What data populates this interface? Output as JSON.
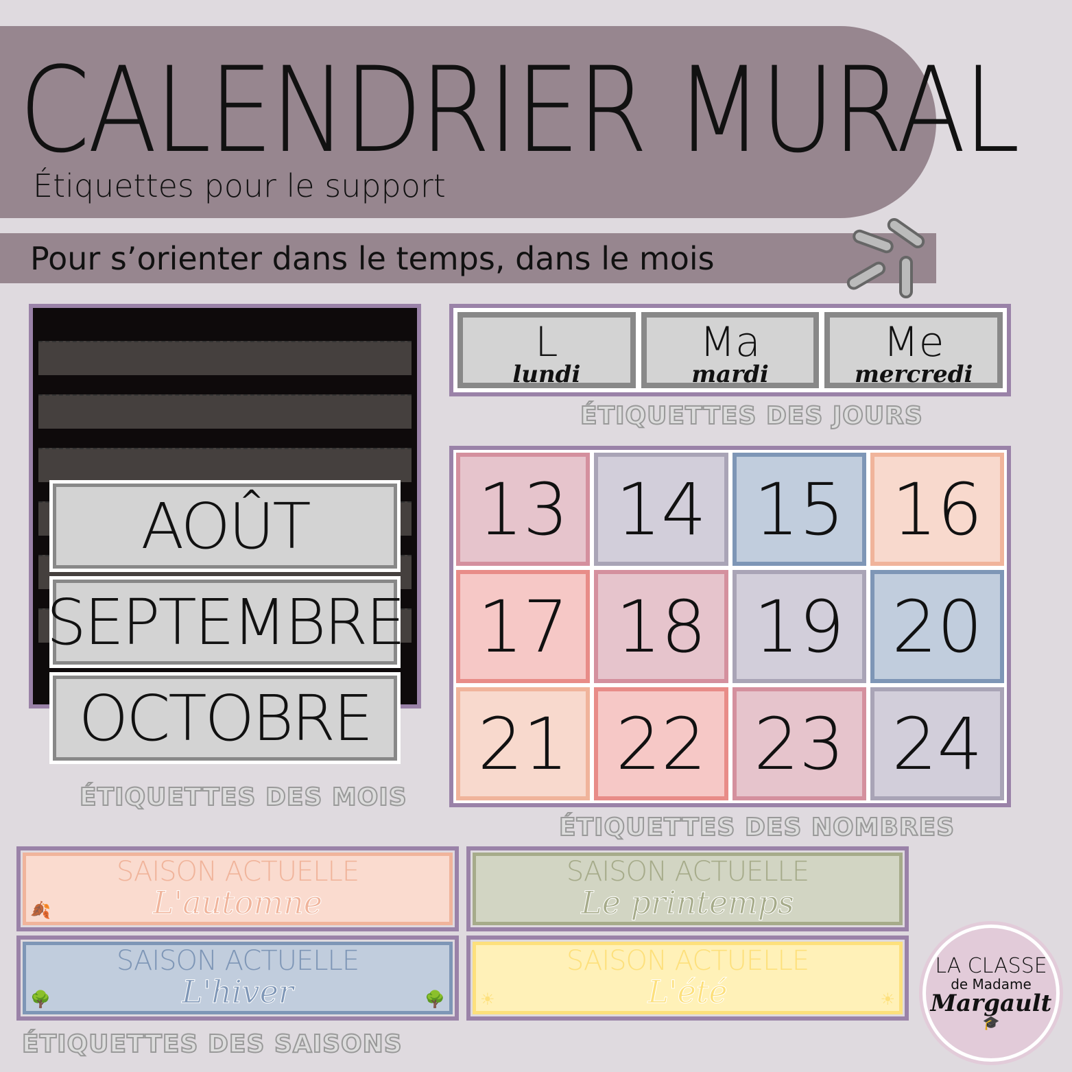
{
  "header": {
    "title": "CALENDRIER MURAL",
    "subtitle": "Étiquettes pour le support",
    "tagline": "Pour s’orienter dans le temps, dans le mois"
  },
  "months": {
    "items": [
      "AOÛT",
      "SEPTEMBRE",
      "OCTOBRE"
    ],
    "label": "ÉTIQUETTES DES MOIS"
  },
  "days": {
    "items": [
      {
        "abbr": "L",
        "name": "lundi"
      },
      {
        "abbr": "Ma",
        "name": "mardi"
      },
      {
        "abbr": "Me",
        "name": "mercredi"
      }
    ],
    "label": "ÉTIQUETTES DES JOURS"
  },
  "numbers": {
    "label": "ÉTIQUETTES DES NOMBRES",
    "items": [
      {
        "n": "13",
        "bg": "#e6c4cc",
        "bd": "#d4909e"
      },
      {
        "n": "14",
        "bg": "#d2ceda",
        "bd": "#a9a4b6"
      },
      {
        "n": "15",
        "bg": "#c1cddd",
        "bd": "#7e96b6"
      },
      {
        "n": "16",
        "bg": "#f8d9cd",
        "bd": "#f0b49b"
      },
      {
        "n": "17",
        "bg": "#f6c8c6",
        "bd": "#e88c88"
      },
      {
        "n": "18",
        "bg": "#e6c4cc",
        "bd": "#d4909e"
      },
      {
        "n": "19",
        "bg": "#d2ceda",
        "bd": "#a9a4b6"
      },
      {
        "n": "20",
        "bg": "#c1cddd",
        "bd": "#7e96b6"
      },
      {
        "n": "21",
        "bg": "#f8d9cd",
        "bd": "#f0b49b"
      },
      {
        "n": "22",
        "bg": "#f6c8c6",
        "bd": "#e88c88"
      },
      {
        "n": "23",
        "bg": "#e6c4cc",
        "bd": "#d4909e"
      },
      {
        "n": "24",
        "bg": "#d2ceda",
        "bd": "#a9a4b6"
      }
    ]
  },
  "seasons": {
    "label": "ÉTIQUETTES DES SAISONS",
    "heading": "SAISON ACTUELLE",
    "items": [
      {
        "name": "L'automne",
        "shown": "L'a",
        "bg": "#fadbcf",
        "bd": "#f0b49b",
        "fg": "#f0b49b"
      },
      {
        "name": "Le printemps",
        "shown": "e p",
        "bg": "#d2d5c3",
        "bd": "#a6ab8a",
        "fg": "#a6ab8a"
      },
      {
        "name": "L'hiver",
        "shown": "L'hiver",
        "bg": "#c1cddd",
        "bd": "#7e96b6",
        "fg": "#7e96b6"
      },
      {
        "name": "L'été",
        "shown": "L'été",
        "bg": "#fff1b8",
        "bd": "#fde07c",
        "fg": "#fde07c"
      }
    ]
  },
  "logo": {
    "line1": "LA CLASSE",
    "line2": "de Madame",
    "line3": "Margault"
  }
}
